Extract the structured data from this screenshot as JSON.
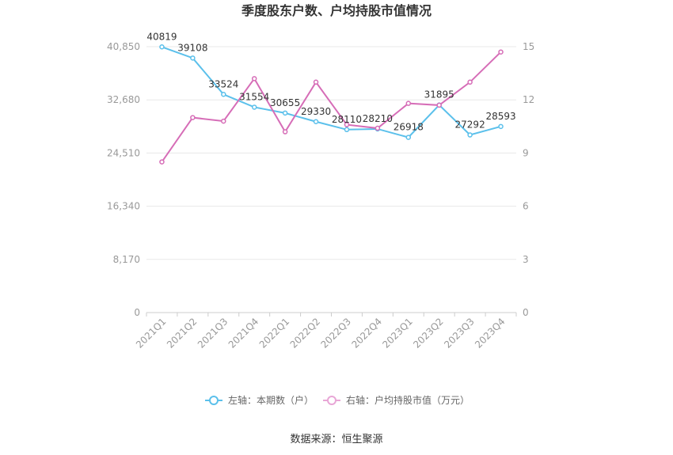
{
  "chart_data": {
    "type": "line",
    "title": "季度股东户数、户均持股市值情况",
    "categories": [
      "2021Q1",
      "2021Q2",
      "2021Q3",
      "2021Q4",
      "2022Q1",
      "2022Q2",
      "2022Q3",
      "2022Q4",
      "2023Q1",
      "2023Q2",
      "2023Q3",
      "2023Q4"
    ],
    "left_axis": {
      "min": 0,
      "max": 40850,
      "ticks": [
        "0",
        "8,170",
        "16,340",
        "24,510",
        "32,680",
        "40,850"
      ]
    },
    "right_axis": {
      "min": 0,
      "max": 15,
      "ticks": [
        "0",
        "3",
        "6",
        "9",
        "12",
        "15"
      ]
    },
    "series": [
      {
        "name": "左轴：本期数（户）",
        "axis": "left",
        "color": "#5bc0eb",
        "values": [
          40819,
          39108,
          33524,
          31554,
          30655,
          29330,
          28110,
          28210,
          26918,
          31895,
          27292,
          28593
        ],
        "labels": [
          "40819",
          "39108",
          "33524",
          "31554",
          "30655",
          "29330",
          "28110",
          "28210",
          "26918",
          "31895",
          "27292",
          "28593"
        ]
      },
      {
        "name": "右轴：户均持股市值（万元）",
        "axis": "right",
        "color": "#d66db7",
        "values": [
          8.5,
          11.0,
          10.8,
          13.2,
          10.2,
          13.0,
          10.6,
          10.4,
          11.8,
          11.7,
          13.0,
          14.7
        ]
      }
    ],
    "grid": true,
    "legend_position": "bottom"
  },
  "source": "数据来源：恒生聚源"
}
